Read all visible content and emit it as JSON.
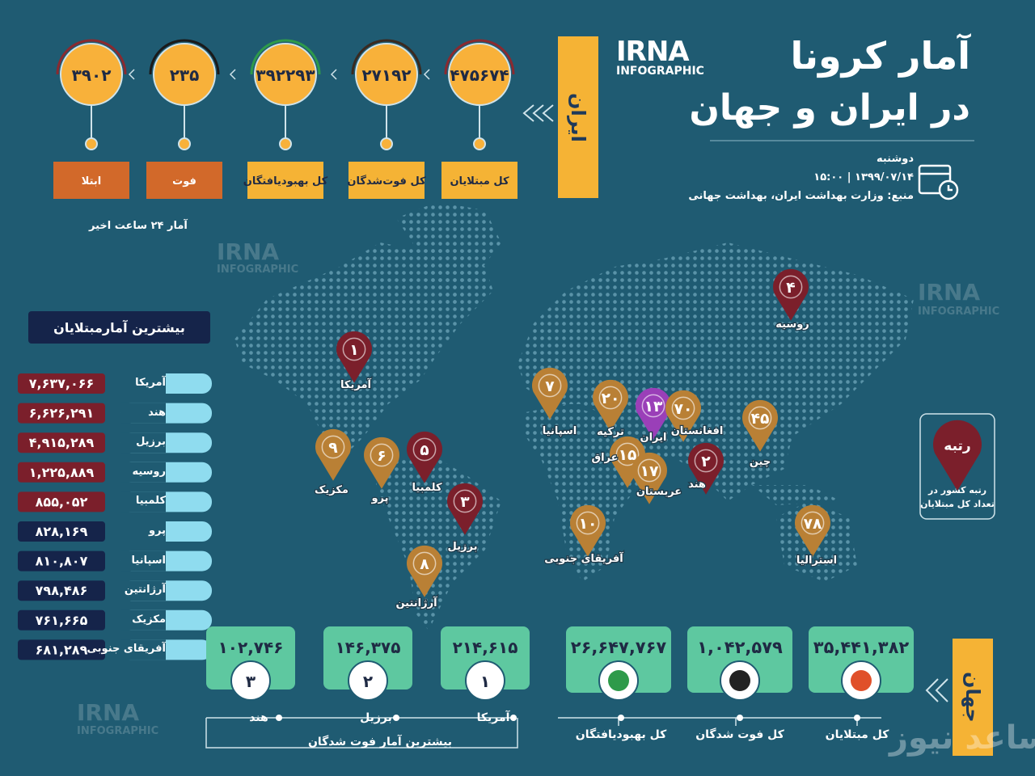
{
  "header": {
    "title_line1": "آمار کرونا",
    "title_line2": "در ایران و جهان",
    "logo": "IRNA",
    "logo_sub": "INFOGRAPHIC",
    "day": "دوشنبه",
    "date": "۱۳۹۹/۰۷/۱۴ | ۱۵:۰۰",
    "source": "منبع: وزارت بهداشت ایران، بهداشت جهانی"
  },
  "iran": {
    "label": "ایران",
    "note": "آمار ۲۴ ساعت اخیر",
    "stats": [
      {
        "value": "۴۷۵۶۷۴",
        "label": "کل مبتلایان"
      },
      {
        "value": "۲۷۱۹۲",
        "label": "کل فوت‌شدگان"
      },
      {
        "value": "۳۹۲۲۹۳",
        "label": "کل بهبودیافتگان"
      },
      {
        "value": "۲۳۵",
        "label": "فوت"
      },
      {
        "value": "۳۹۰۲",
        "label": "ابتلا"
      }
    ]
  },
  "top_cases": {
    "title": "بیشترین آمارمبتلایان",
    "rows": [
      {
        "country": "آمریکا",
        "value": "۷,۶۳۷,۰۶۶"
      },
      {
        "country": "هند",
        "value": "۶,۶۲۶,۲۹۱"
      },
      {
        "country": "برزیل",
        "value": "۴,۹۱۵,۲۸۹"
      },
      {
        "country": "روسیه",
        "value": "۱,۲۲۵,۸۸۹"
      },
      {
        "country": "کلمبیا",
        "value": "۸۵۵,۰۵۲"
      },
      {
        "country": "پرو",
        "value": "۸۲۸,۱۶۹"
      },
      {
        "country": "اسپانیا",
        "value": "۸۱۰,۸۰۷"
      },
      {
        "country": "آرژانتین",
        "value": "۷۹۸,۴۸۶"
      },
      {
        "country": "مکزیک",
        "value": "۷۶۱,۶۶۵"
      },
      {
        "country": "آفریقای جنوبی",
        "value": "۶۸۱,۲۸۹"
      }
    ]
  },
  "map_pins": [
    {
      "rank": "۱",
      "country": "آمریکا",
      "color": "#7b1f2b"
    },
    {
      "rank": "۲",
      "country": "هند",
      "color": "#7b1f2b"
    },
    {
      "rank": "۳",
      "country": "برزیل",
      "color": "#7b1f2b"
    },
    {
      "rank": "۴",
      "country": "روسیه",
      "color": "#7b1f2b"
    },
    {
      "rank": "۵",
      "country": "کلمبیا",
      "color": "#7b1f2b"
    },
    {
      "rank": "۶",
      "country": "پرو",
      "color": "#b98035"
    },
    {
      "rank": "۷",
      "country": "اسپانیا",
      "color": "#b98035"
    },
    {
      "rank": "۸",
      "country": "آرژانتین",
      "color": "#b98035"
    },
    {
      "rank": "۹",
      "country": "مکزیک",
      "color": "#b98035"
    },
    {
      "rank": "۱۰",
      "country": "آفریقای جنوبی",
      "color": "#b98035"
    },
    {
      "rank": "۱۳",
      "country": "ایران",
      "color": "#9a3fb8"
    },
    {
      "rank": "۱۵",
      "country": "عراق",
      "color": "#b98035"
    },
    {
      "rank": "۱۷",
      "country": "عربستان",
      "color": "#b98035"
    },
    {
      "rank": "۲۰",
      "country": "ترکیه",
      "color": "#b98035"
    },
    {
      "rank": "۴۵",
      "country": "چین",
      "color": "#b98035"
    },
    {
      "rank": "۷۰",
      "country": "افغانستان",
      "color": "#b98035"
    },
    {
      "rank": "۷۸",
      "country": "استرالیا",
      "color": "#b98035"
    }
  ],
  "legend": {
    "title": "رتبه",
    "text": "رتبه کشور در تعداد کل مبتلایان"
  },
  "world": {
    "label": "جهان",
    "stats": [
      {
        "value": "۳۵,۴۴۱,۳۸۲",
        "label": "کل مبتلایان"
      },
      {
        "value": "۱,۰۴۲,۵۷۹",
        "label": "کل فوت شدگان"
      },
      {
        "value": "۲۶,۶۴۷,۷۶۷",
        "label": "کل بهبودیافتگان"
      }
    ]
  },
  "top_deaths": {
    "title": "بیشترین آمار فوت شدگان",
    "items": [
      {
        "rank": "۱",
        "country": "آمریکا",
        "value": "۲۱۴,۶۱۵"
      },
      {
        "rank": "۲",
        "country": "برزیل",
        "value": "۱۴۶,۳۷۵"
      },
      {
        "rank": "۳",
        "country": "هند",
        "value": "۱۰۲,۷۴۶"
      }
    ]
  },
  "watermark": "ساعد نیوز"
}
